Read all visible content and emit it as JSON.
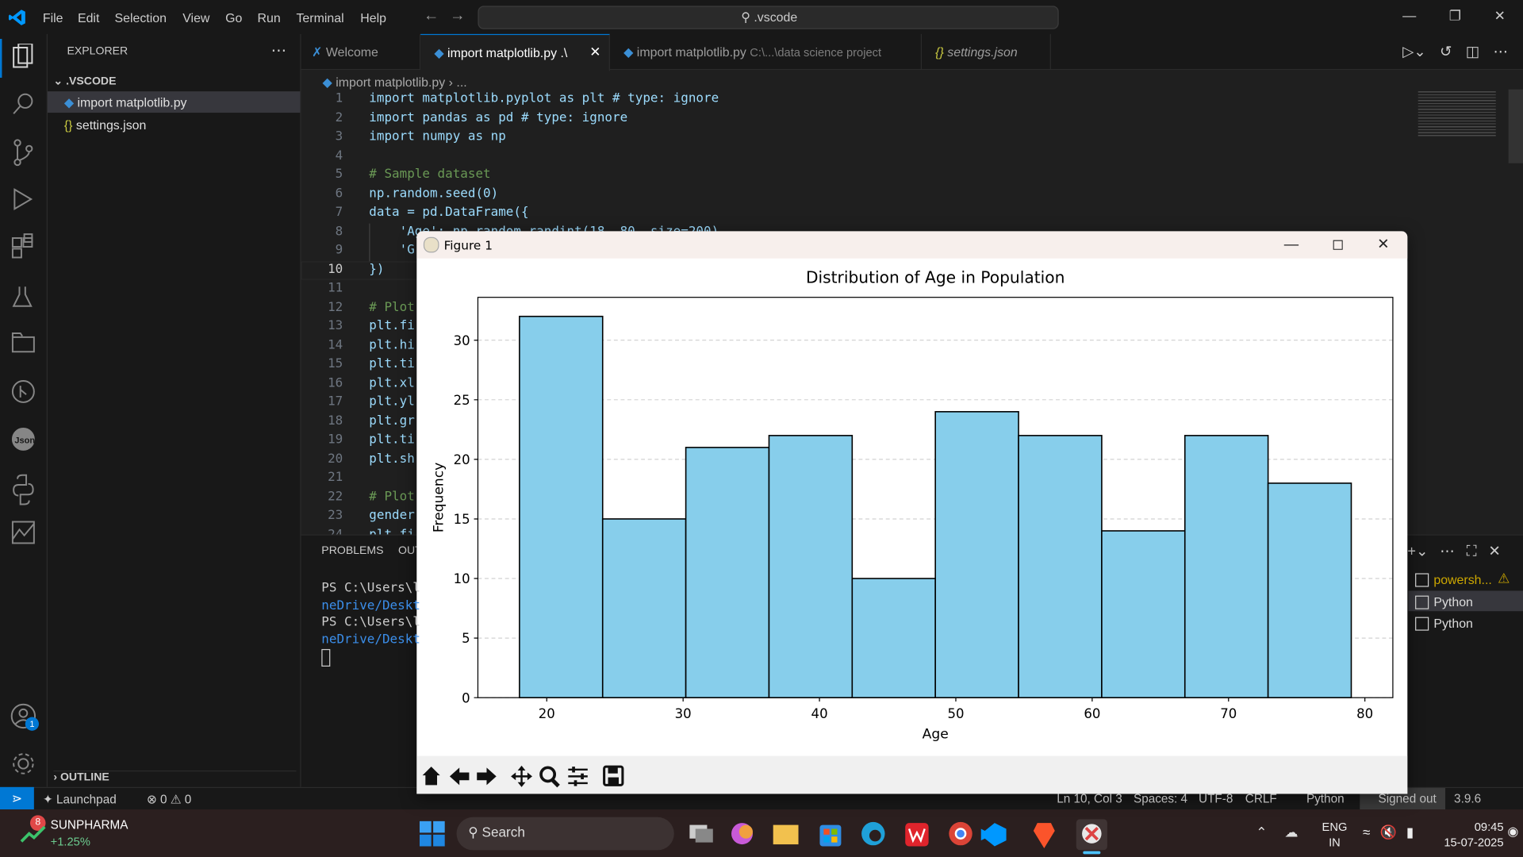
{
  "window": {
    "title": ".vscode",
    "menu": [
      "File",
      "Edit",
      "Selection",
      "View",
      "Go",
      "Run",
      "Terminal",
      "Help"
    ]
  },
  "sidebar": {
    "title": "EXPLORER",
    "folder": ".VSCODE",
    "files": [
      "import matplotlib.py",
      "settings.json"
    ],
    "outline": "OUTLINE"
  },
  "tabs": [
    {
      "label": "Welcome"
    },
    {
      "label": "import matplotlib.py .\\"
    },
    {
      "label": "import matplotlib.py",
      "detail": "C:\\...\\data science project"
    },
    {
      "label": "settings.json"
    }
  ],
  "breadcrumb": [
    "import matplotlib.py",
    "..."
  ],
  "editor": {
    "line_numbers": [
      1,
      2,
      3,
      4,
      5,
      6,
      7,
      8,
      9,
      10,
      11,
      12,
      13,
      14,
      15,
      16,
      17,
      18,
      19,
      20,
      21,
      22,
      23,
      24
    ],
    "lines": [
      "import matplotlib.pyplot as plt # type: ignore",
      "import pandas as pd # type: ignore",
      "import numpy as np",
      null,
      "# Sample dataset",
      "np.random.seed(0)",
      "data = pd.DataFrame({",
      "    'Age': np.random.randint(18, 80, size=200),",
      "    'G",
      "})",
      null,
      "# Plot",
      "plt.fi",
      "plt.hi",
      "plt.ti",
      "plt.xl",
      "plt.yl",
      "plt.gr",
      "plt.ti",
      "plt.sh",
      null,
      "# Plot",
      "gender",
      "plt.fi"
    ]
  },
  "panel": {
    "tabs": [
      "PROBLEMS",
      "OUT"
    ],
    "terminal": [
      "PS C:\\Users\\l",
      "neDrive/Deskt",
      "PS C:\\Users\\l",
      "neDrive/Deskt"
    ],
    "terminals": [
      "powersh...",
      "Python",
      "Python"
    ]
  },
  "status": {
    "launchpad": "Launchpad",
    "errors": 0,
    "warnings": 0,
    "items": [
      "Ln 10, Col 3",
      "Spaces: 4",
      "UTF-8",
      "CRLF",
      "Python",
      "Signed out",
      "3.9.6"
    ]
  },
  "accounts_badge": 1,
  "taskbar": {
    "stock": "SUNPHARMA",
    "change": "+1.25%",
    "badge": 8,
    "search": "Search",
    "lang": "ENG",
    "region": "IN",
    "time": "09:45",
    "date": "15-07-2025"
  },
  "figure": {
    "title": "Figure 1"
  },
  "chart_data": {
    "type": "histogram",
    "title": "Distribution of Age in Population",
    "xlabel": "Age",
    "ylabel": "Frequency",
    "bins": [
      18,
      24.1,
      30.2,
      36.3,
      42.4,
      48.5,
      54.6,
      60.7,
      66.8,
      72.9,
      79
    ],
    "values": [
      32,
      15,
      21,
      22,
      10,
      24,
      22,
      14,
      22,
      18
    ],
    "color": "#87ceeb",
    "edgecolor": "#000000",
    "xlim": [
      14.95,
      82.05
    ],
    "xticks": [
      20,
      30,
      40,
      50,
      60,
      70,
      80
    ],
    "ylim": [
      0,
      33.6
    ],
    "yticks": [
      0,
      5,
      10,
      15,
      20,
      25,
      30
    ],
    "grid": true
  }
}
